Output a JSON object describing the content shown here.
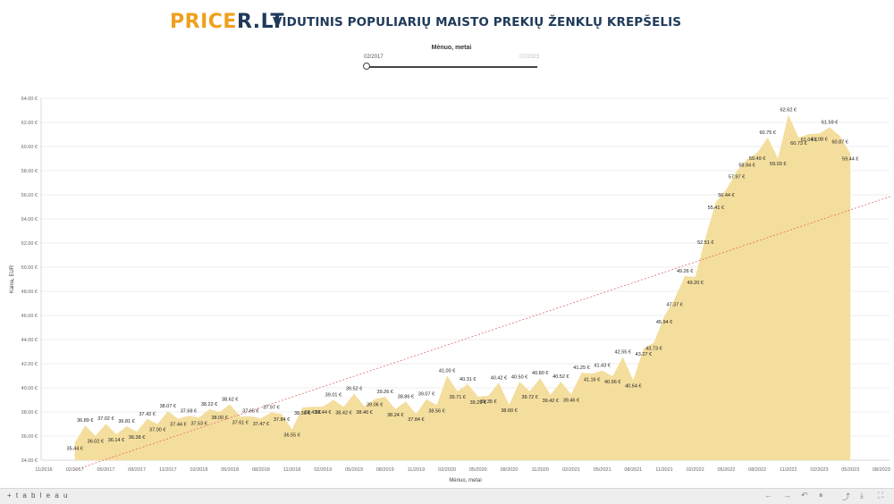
{
  "header": {
    "logo_part1": "PRICE",
    "logo_part2": "R.LT",
    "title": "VIDUTINIS POPULIARIŲ MAISTO PREKIŲ ŽENKLŲ KREPŠELIS"
  },
  "filter": {
    "label": "Mėnuo, metai",
    "from": "02/2017",
    "to": "07/2023"
  },
  "footer": {
    "brand": "+ t a b l e a u",
    "icons": [
      "back-icon",
      "forward-icon",
      "revert-icon",
      "pause-icon",
      "share-icon",
      "download-icon",
      "fullscreen-icon"
    ]
  },
  "colors": {
    "area": "#f4de9e",
    "trend": "#e26a6a",
    "grid": "#e9e9e9"
  },
  "chart_data": {
    "type": "area",
    "title": "",
    "xlabel": "Mėnuo, metai",
    "ylabel": "Kaina, EUR",
    "ylim": [
      34,
      64
    ],
    "yticks": [
      "34.00 €",
      "36.00 €",
      "38.00 €",
      "40.00 €",
      "42.00 €",
      "44.00 €",
      "46.00 €",
      "48.00 €",
      "50.00 €",
      "52.00 €",
      "54.00 €",
      "56.00 €",
      "58.00 €",
      "60.00 €",
      "62.00 €",
      "64.00 €"
    ],
    "xticks": [
      "11/2016",
      "02/2017",
      "05/2017",
      "08/2017",
      "11/2017",
      "02/2018",
      "05/2018",
      "08/2018",
      "11/2018",
      "02/2019",
      "05/2019",
      "08/2019",
      "11/2019",
      "02/2020",
      "05/2020",
      "08/2020",
      "11/2020",
      "02/2021",
      "05/2021",
      "08/2021",
      "11/2021",
      "02/2022",
      "05/2022",
      "08/2022",
      "11/2022",
      "02/2023",
      "05/2023",
      "08/2023"
    ],
    "grid": true,
    "trendline": {
      "start": [
        "02/2017",
        33.2
      ],
      "end": [
        "09/2023",
        55.9
      ]
    },
    "points": [
      [
        "02/2017",
        35.44,
        "35.44 €"
      ],
      [
        "03/2017",
        36.89,
        "36.89 €"
      ],
      [
        "04/2017",
        36.02,
        "36.02 €"
      ],
      [
        "05/2017",
        37.02,
        "37.02 €"
      ],
      [
        "06/2017",
        36.14,
        "36.14 €"
      ],
      [
        "07/2017",
        36.81,
        "36.81 €"
      ],
      [
        "08/2017",
        36.38,
        "36.38 €"
      ],
      [
        "09/2017",
        37.42,
        "37.42 €"
      ],
      [
        "10/2017",
        37.0,
        "37.00 €"
      ],
      [
        "11/2017",
        38.07,
        "38.07 €"
      ],
      [
        "12/2017",
        37.44,
        "37.44 €"
      ],
      [
        "01/2018",
        37.68,
        "37.68 €"
      ],
      [
        "02/2018",
        37.53,
        "37.53 €"
      ],
      [
        "03/2018",
        38.22,
        "38.22 €"
      ],
      [
        "04/2018",
        38.0,
        "38.00 €"
      ],
      [
        "05/2018",
        38.62,
        "38.62 €"
      ],
      [
        "06/2018",
        37.61,
        "37.61 €"
      ],
      [
        "07/2018",
        37.65,
        "37.65 €"
      ],
      [
        "08/2018",
        37.47,
        "37.47 €"
      ],
      [
        "09/2018",
        37.97,
        "37.97 €"
      ],
      [
        "10/2018",
        37.84,
        "37.84 €"
      ],
      [
        "11/2018",
        36.55,
        "36.55 €"
      ],
      [
        "12/2018",
        38.36,
        "38.36 €"
      ],
      [
        "01/2019",
        38.43,
        "38.43 €"
      ],
      [
        "02/2019",
        38.44,
        "38.44 €"
      ],
      [
        "03/2019",
        39.01,
        "39.01 €"
      ],
      [
        "04/2019",
        38.42,
        "38.42 €"
      ],
      [
        "05/2019",
        39.52,
        "39.52 €"
      ],
      [
        "06/2019",
        38.46,
        "38.46 €"
      ],
      [
        "07/2019",
        39.06,
        "39.06 €"
      ],
      [
        "08/2019",
        39.26,
        "39.26 €"
      ],
      [
        "09/2019",
        38.24,
        "38.24 €"
      ],
      [
        "10/2019",
        38.86,
        "38.86 €"
      ],
      [
        "11/2019",
        37.84,
        "37.84 €"
      ],
      [
        "12/2019",
        39.07,
        "39.07 €"
      ],
      [
        "01/2020",
        38.56,
        "38.56 €"
      ],
      [
        "02/2020",
        41.0,
        "41.00 €"
      ],
      [
        "03/2020",
        39.71,
        "39.71 €"
      ],
      [
        "04/2020",
        40.31,
        "40.31 €"
      ],
      [
        "05/2020",
        39.25,
        "39.25 €"
      ],
      [
        "06/2020",
        39.35,
        "39.35 €"
      ],
      [
        "07/2020",
        40.42,
        "40.42 €"
      ],
      [
        "08/2020",
        38.6,
        "38.60 €"
      ],
      [
        "09/2020",
        40.5,
        "40.50 €"
      ],
      [
        "10/2020",
        39.72,
        "39.72 €"
      ],
      [
        "11/2020",
        40.8,
        "40.80 €"
      ],
      [
        "12/2020",
        39.42,
        "39.42 €"
      ],
      [
        "01/2021",
        40.52,
        "40.52 €"
      ],
      [
        "02/2021",
        39.46,
        "39.46 €"
      ],
      [
        "03/2021",
        41.25,
        "41.25 €"
      ],
      [
        "04/2021",
        41.16,
        "41.16 €"
      ],
      [
        "05/2021",
        41.43,
        "41.43 €"
      ],
      [
        "06/2021",
        40.96,
        "40.96 €"
      ],
      [
        "07/2021",
        42.55,
        "42.55 €"
      ],
      [
        "08/2021",
        40.64,
        "40.64 €"
      ],
      [
        "09/2021",
        43.27,
        "43.27 €"
      ],
      [
        "10/2021",
        43.73,
        "43.73 €"
      ],
      [
        "11/2021",
        45.94,
        "45.94 €"
      ],
      [
        "12/2021",
        47.37,
        "47.37 €"
      ],
      [
        "01/2022",
        49.26,
        "49.26 €"
      ],
      [
        "02/2022",
        49.2,
        "49.20 €"
      ],
      [
        "03/2022",
        52.51,
        "52.51 €"
      ],
      [
        "04/2022",
        55.41,
        "55.41 €"
      ],
      [
        "05/2022",
        56.44,
        "56.44 €"
      ],
      [
        "06/2022",
        57.97,
        "57.97 €"
      ],
      [
        "07/2022",
        58.94,
        "58.94 €"
      ],
      [
        "08/2022",
        59.49,
        "59.49 €"
      ],
      [
        "09/2022",
        60.75,
        "60.75 €"
      ],
      [
        "10/2022",
        59.03,
        "59.03 €"
      ],
      [
        "11/2022",
        62.62,
        "62.62 €"
      ],
      [
        "12/2022",
        60.73,
        "60.73 €"
      ],
      [
        "01/2023",
        61.04,
        "61.04 €"
      ],
      [
        "02/2023",
        61.08,
        "61.08 €"
      ],
      [
        "03/2023",
        61.59,
        "61.59 €"
      ],
      [
        "04/2023",
        60.87,
        "60.87 €"
      ],
      [
        "05/2023",
        59.44,
        "59.44 €"
      ]
    ]
  }
}
